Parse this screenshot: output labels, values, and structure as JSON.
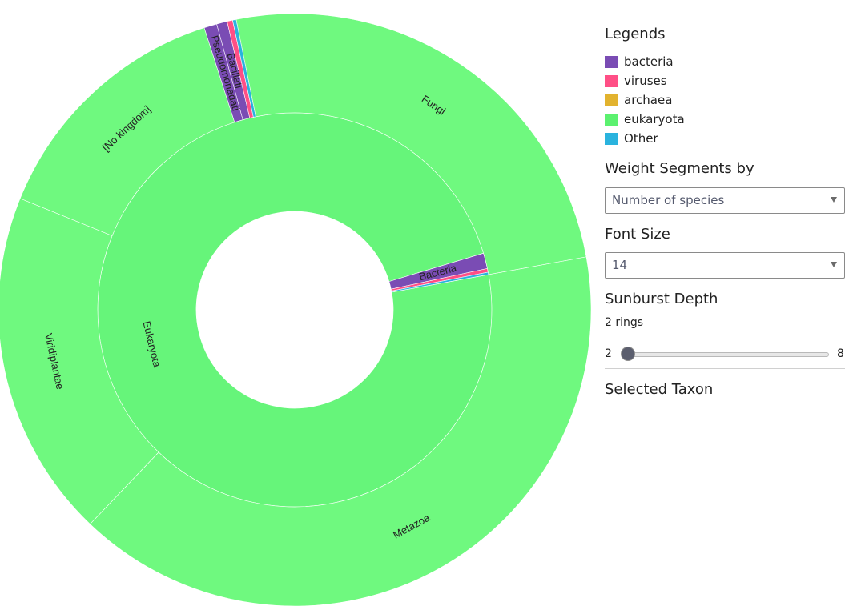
{
  "chart_data": {
    "type": "sunburst",
    "rings": [
      [
        {
          "label": "Eukaryota",
          "value": 1.9645,
          "color": "#66f57a"
        },
        {
          "label": "Bacteria",
          "value": 0.0255,
          "color": "#7a4cb4"
        },
        {
          "label": "",
          "value": 0.006,
          "color": "#ff4f86"
        },
        {
          "label": "",
          "value": 0.004,
          "color": "#2ab3de"
        }
      ],
      [
        {
          "label": "Metazoa",
          "value": 0.8,
          "color": "#6ff97f",
          "parent": "Eukaryota"
        },
        {
          "label": "Viridiplantae",
          "value": 0.38,
          "color": "#6ff97f",
          "parent": "Eukaryota"
        },
        {
          "label": "[No kingdom]",
          "value": 0.2785,
          "color": "#6ff97f",
          "parent": "Eukaryota"
        },
        {
          "label": "Pseudomonadati",
          "value": 0.014,
          "color": "#7a4cb4",
          "parent": "Bacteria"
        },
        {
          "label": "Bacillati",
          "value": 0.0115,
          "color": "#7a4cb4",
          "parent": "Bacteria"
        },
        {
          "label": "",
          "value": 0.006,
          "color": "#ff4f86",
          "parent": ""
        },
        {
          "label": "",
          "value": 0.004,
          "color": "#2ab3de",
          "parent": ""
        },
        {
          "label": "Fungi",
          "value": 0.506,
          "color": "#6ff97f",
          "parent": "Eukaryota"
        }
      ]
    ]
  },
  "legend": {
    "title": "Legends",
    "items": [
      {
        "label": "bacteria",
        "color": "#7a4cb4"
      },
      {
        "label": "viruses",
        "color": "#ff4f86"
      },
      {
        "label": "archaea",
        "color": "#e2b32f"
      },
      {
        "label": "eukaryota",
        "color": "#5bf16f"
      },
      {
        "label": "Other",
        "color": "#2ab3de"
      }
    ]
  },
  "weight": {
    "title": "Weight Segments by",
    "value": "Number of species"
  },
  "font_size": {
    "title": "Font Size",
    "value": "14"
  },
  "depth": {
    "title": "Sunburst Depth",
    "value_text": "2 rings",
    "min": "2",
    "max": "8",
    "current": 2
  },
  "selected": {
    "title": "Selected Taxon"
  }
}
